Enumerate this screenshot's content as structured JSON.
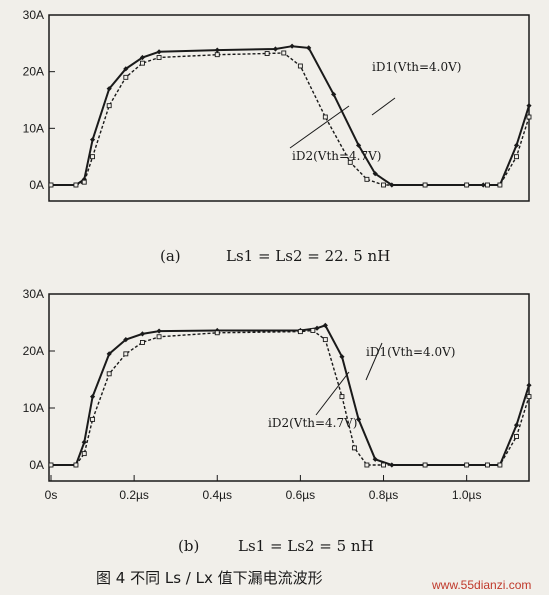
{
  "chart_data": [
    {
      "type": "line",
      "panel": "(a)",
      "caption_prefix": "(a)",
      "caption_formula": "Ls1 = Ls2 = 22. 5 nH",
      "ylim": [
        0,
        30
      ],
      "xlim": [
        0,
        1.15
      ],
      "yticks": [
        "0A",
        "10A",
        "20A",
        "30A"
      ],
      "xticks": [],
      "series": [
        {
          "name": "iD1(Vth=4.0V)",
          "style": "solid",
          "x": [
            0,
            0.06,
            0.08,
            0.1,
            0.14,
            0.18,
            0.22,
            0.26,
            0.4,
            0.54,
            0.58,
            0.62,
            0.68,
            0.74,
            0.78,
            0.82,
            0.9,
            1.0,
            1.04,
            1.08,
            1.12,
            1.15
          ],
          "y": [
            0,
            0,
            1,
            8,
            17,
            20.5,
            22.5,
            23.5,
            23.8,
            24,
            24.5,
            24.2,
            16,
            7,
            2,
            0,
            0,
            0,
            0,
            0,
            7,
            14
          ]
        },
        {
          "name": "iD2(Vth=4.7V)",
          "style": "dashed",
          "x": [
            0,
            0.06,
            0.08,
            0.1,
            0.14,
            0.18,
            0.22,
            0.26,
            0.4,
            0.52,
            0.56,
            0.6,
            0.66,
            0.72,
            0.76,
            0.8,
            0.9,
            1.0,
            1.05,
            1.08,
            1.12,
            1.15
          ],
          "y": [
            0,
            0,
            0.5,
            5,
            14,
            19,
            21.5,
            22.5,
            23,
            23.2,
            23.3,
            21,
            12,
            4,
            1,
            0,
            0,
            0,
            0,
            0,
            5,
            12
          ]
        }
      ],
      "labels": {
        "d1": "iD1(Vth=4.0V)",
        "d2": "iD2(Vth=4.7V)"
      }
    },
    {
      "type": "line",
      "panel": "(b)",
      "caption_prefix": "(b)",
      "caption_formula": "Ls1 = Ls2 = 5 nH",
      "ylim": [
        0,
        30
      ],
      "xlim": [
        0,
        1.15
      ],
      "yticks": [
        "0A",
        "10A",
        "20A",
        "30A"
      ],
      "xticks": [
        "0s",
        "0.2µs",
        "0.4µs",
        "0.6µs",
        "0.8µs",
        "1.0µs"
      ],
      "series": [
        {
          "name": "iD1(Vth=4.0V)",
          "style": "solid",
          "x": [
            0,
            0.06,
            0.08,
            0.1,
            0.14,
            0.18,
            0.22,
            0.26,
            0.4,
            0.6,
            0.64,
            0.66,
            0.7,
            0.74,
            0.78,
            0.82,
            0.9,
            1.0,
            1.05,
            1.08,
            1.12,
            1.15
          ],
          "y": [
            0,
            0,
            4,
            12,
            19.5,
            22,
            23,
            23.5,
            23.6,
            23.6,
            24,
            24.5,
            19,
            8,
            1,
            0,
            0,
            0,
            0,
            0,
            7,
            14
          ]
        },
        {
          "name": "iD2(Vth=4.7V)",
          "style": "dashed",
          "x": [
            0,
            0.06,
            0.08,
            0.1,
            0.14,
            0.18,
            0.22,
            0.26,
            0.4,
            0.6,
            0.63,
            0.66,
            0.7,
            0.73,
            0.76,
            0.8,
            0.9,
            1.0,
            1.05,
            1.08,
            1.12,
            1.15
          ],
          "y": [
            0,
            0,
            2,
            8,
            16,
            19.5,
            21.5,
            22.5,
            23.2,
            23.4,
            23.6,
            22,
            12,
            3,
            0,
            0,
            0,
            0,
            0,
            0,
            5,
            12
          ]
        }
      ],
      "labels": {
        "d1": "iD1(Vth=4.0V)",
        "d2": "iD2(Vth=4.7V)"
      }
    }
  ],
  "figure_caption": "图 4   不同 Ls / Lx 值下漏电流波形",
  "watermark": "www.55dianzi.com",
  "colors": {
    "background": "#f1efea",
    "ink": "#1a1a1a",
    "watermark": "#c0392b"
  }
}
